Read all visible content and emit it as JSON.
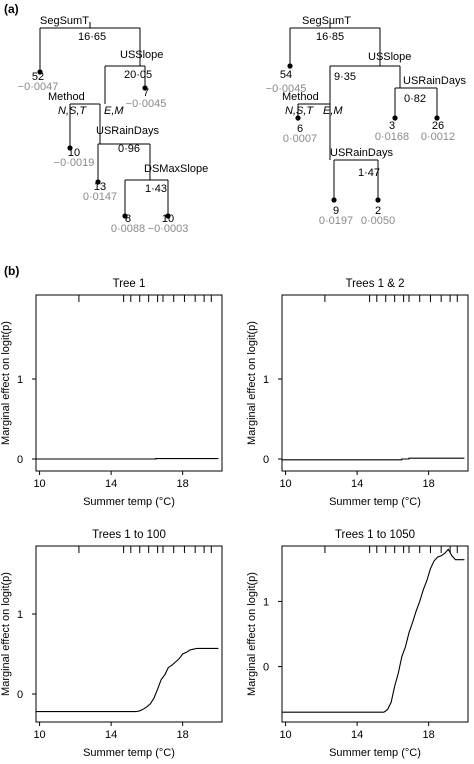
{
  "panel_labels": [
    "(a)",
    "(b)"
  ],
  "colors": {
    "ink": "#000000",
    "muted": "#8a8a8a"
  },
  "trees": [
    {
      "nodes": [
        {
          "id": "root",
          "split": "SegSumT",
          "improvement": "16·65"
        },
        {
          "id": "n1",
          "split": "USSlope",
          "improvement": "20·05"
        },
        {
          "id": "n2",
          "split": "Method",
          "left_label": "N,S,T",
          "right_label": "E,M"
        },
        {
          "id": "n3",
          "split": "USRainDays",
          "improvement": "0·96"
        },
        {
          "id": "n4",
          "split": "DSMaxSlope",
          "improvement": "1·43"
        }
      ],
      "leaves": [
        {
          "id": "L1",
          "n": "52",
          "value": "−0·0047"
        },
        {
          "id": "L2",
          "n": "7",
          "value": "−0·0045"
        },
        {
          "id": "L3",
          "n": "10",
          "value": "−0·0019"
        },
        {
          "id": "L4",
          "n": "13",
          "value": "0·0147"
        },
        {
          "id": "L5",
          "n": "8",
          "value": "0·0088"
        },
        {
          "id": "L6",
          "n": "10",
          "value": "−0·0003"
        }
      ]
    },
    {
      "nodes": [
        {
          "id": "root",
          "split": "SegSumT",
          "improvement": "16·85"
        },
        {
          "id": "n1",
          "split": "USSlope",
          "improvement": "9·35"
        },
        {
          "id": "n2",
          "split": "Method",
          "left_label": "N,S,T",
          "right_label": "E,M"
        },
        {
          "id": "n3",
          "split": "USRainDays",
          "improvement": "0·82"
        },
        {
          "id": "n4",
          "split": "USRainDays",
          "improvement": "1·47"
        }
      ],
      "leaves": [
        {
          "id": "L1",
          "n": "54",
          "value": "−0·0045"
        },
        {
          "id": "L2",
          "n": "6",
          "value": "0·0007"
        },
        {
          "id": "L3",
          "n": "3",
          "value": "0·0168"
        },
        {
          "id": "L4",
          "n": "26",
          "value": "0·0012"
        },
        {
          "id": "L5",
          "n": "9",
          "value": "0·0197"
        },
        {
          "id": "L6",
          "n": "2",
          "value": "0·0050"
        }
      ]
    }
  ],
  "chart_data": [
    {
      "type": "line",
      "title": "Tree 1",
      "xlabel": "Summer temp (°C)",
      "ylabel": "Marginal effect on logit(p)",
      "xlim": [
        9.8,
        20.2
      ],
      "ylim": [
        -0.15,
        2.05
      ],
      "xticks": [
        10,
        14,
        18
      ],
      "yticks": [
        0,
        1
      ],
      "rug": [
        12.2,
        14.7,
        15.1,
        15.6,
        16.1,
        16.6,
        16.9,
        17.5,
        18.1,
        18.7,
        19.2,
        19.6
      ],
      "x": [
        9.8,
        16.5,
        16.5,
        20.0
      ],
      "y": [
        0,
        0,
        0.005,
        0.005
      ]
    },
    {
      "type": "line",
      "title": "Trees 1 & 2",
      "xlabel": "Summer temp (°C)",
      "ylabel": "Marginal effect on logit(p)",
      "xlim": [
        9.8,
        20.2
      ],
      "ylim": [
        -0.15,
        2.05
      ],
      "xticks": [
        10,
        14,
        18
      ],
      "yticks": [
        0,
        1
      ],
      "rug": [
        12.2,
        14.7,
        15.1,
        15.6,
        16.1,
        16.6,
        16.9,
        17.5,
        18.1,
        18.7,
        19.2,
        19.6
      ],
      "x": [
        9.8,
        16.5,
        16.5,
        16.9,
        16.9,
        20.0
      ],
      "y": [
        -0.01,
        -0.01,
        0.0,
        0.0,
        0.01,
        0.01
      ]
    },
    {
      "type": "line",
      "title": "Trees 1 to 100",
      "xlabel": "Summer temp (°C)",
      "ylabel": "Marginal effect on logit(p)",
      "xlim": [
        9.8,
        20.2
      ],
      "ylim": [
        -0.35,
        1.85
      ],
      "xticks": [
        10,
        14,
        18
      ],
      "yticks": [
        0,
        1
      ],
      "rug": [
        12.2,
        14.7,
        15.1,
        15.6,
        16.1,
        16.6,
        16.9,
        17.5,
        18.1,
        18.7,
        19.2,
        19.6
      ],
      "x": [
        9.8,
        15.4,
        15.6,
        15.8,
        16.0,
        16.2,
        16.4,
        16.6,
        16.8,
        17.0,
        17.2,
        17.4,
        17.6,
        17.8,
        18.0,
        18.2,
        18.4,
        18.6,
        18.8,
        20.0
      ],
      "y": [
        -0.22,
        -0.22,
        -0.21,
        -0.19,
        -0.16,
        -0.12,
        -0.05,
        0.06,
        0.18,
        0.24,
        0.33,
        0.36,
        0.4,
        0.44,
        0.5,
        0.52,
        0.55,
        0.56,
        0.57,
        0.57
      ]
    },
    {
      "type": "line",
      "title": "Trees 1 to 1050",
      "xlabel": "Summer temp (°C)",
      "ylabel": "Marginal effect on logit(p)",
      "xlim": [
        9.8,
        20.2
      ],
      "ylim": [
        -0.85,
        1.85
      ],
      "xticks": [
        10,
        14,
        18
      ],
      "yticks": [
        0,
        1
      ],
      "rug": [
        12.2,
        14.7,
        15.1,
        15.6,
        16.1,
        16.6,
        16.9,
        17.5,
        18.1,
        18.7,
        19.2,
        19.6
      ],
      "x": [
        9.8,
        15.5,
        15.7,
        15.9,
        16.1,
        16.3,
        16.5,
        16.7,
        16.9,
        17.1,
        17.3,
        17.5,
        17.7,
        17.9,
        18.1,
        18.3,
        18.5,
        18.7,
        18.9,
        19.1,
        19.3,
        19.5,
        20.0
      ],
      "y": [
        -0.7,
        -0.7,
        -0.66,
        -0.55,
        -0.3,
        -0.1,
        0.15,
        0.3,
        0.52,
        0.68,
        0.85,
        1.0,
        1.18,
        1.32,
        1.5,
        1.62,
        1.68,
        1.7,
        1.74,
        1.8,
        1.7,
        1.64,
        1.64
      ]
    }
  ]
}
